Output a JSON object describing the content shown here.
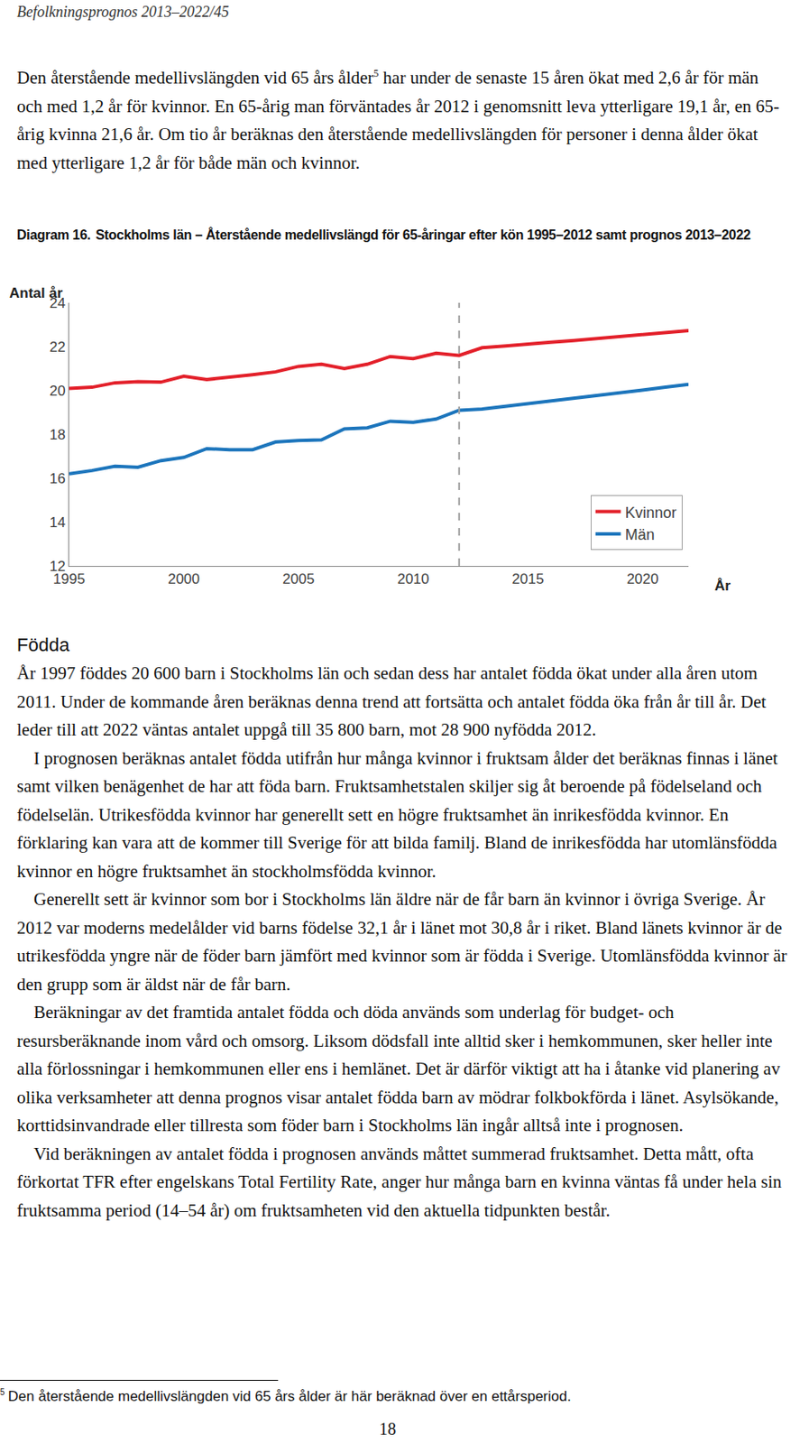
{
  "header": "Befolkningsprognos 2013–2022/45",
  "intro": {
    "text_before_ref": "Den återstående medellivslängden vid 65 års ålder",
    "footnote_ref": "5",
    "text_after_ref": " har under de senaste 15 åren ökat med 2,6 år för män och med 1,2 år för kvinnor. En 65-årig man förväntades år 2012 i genomsnitt leva ytterligare 19,1 år, en 65-årig kvinna 21,6 år. Om tio år beräknas den återstående medellivslängden för personer i denna ålder ökat med ytterligare 1,2 år för både män och kvinnor."
  },
  "chart_data": {
    "type": "line",
    "label": "Diagram 16.",
    "title": "Stockholms län – Återstående medellivslängd för 65-åringar efter kön 1995–2012 samt prognos 2013–2022",
    "y_label": "Antal år",
    "x_label": "År",
    "x": [
      1995,
      1996,
      1997,
      1998,
      1999,
      2000,
      2001,
      2002,
      2003,
      2004,
      2005,
      2006,
      2007,
      2008,
      2009,
      2010,
      2011,
      2012,
      2013,
      2014,
      2015,
      2016,
      2017,
      2018,
      2019,
      2020,
      2021,
      2022
    ],
    "series": [
      {
        "name": "Kvinnor",
        "color": "#e3202a",
        "values": [
          20.1,
          20.15,
          20.35,
          20.4,
          20.38,
          20.65,
          20.5,
          20.6,
          20.72,
          20.85,
          21.1,
          21.2,
          21.0,
          21.2,
          21.55,
          21.45,
          21.7,
          21.6,
          21.95,
          22.03,
          22.1,
          22.2,
          22.28,
          22.37,
          22.46,
          22.55,
          22.64,
          22.73
        ]
      },
      {
        "name": "Män",
        "color": "#1c75bc",
        "values": [
          16.2,
          16.35,
          16.55,
          16.5,
          16.8,
          16.95,
          17.35,
          17.3,
          17.3,
          17.65,
          17.72,
          17.75,
          18.25,
          18.3,
          18.6,
          18.55,
          18.7,
          19.1,
          19.15,
          19.27,
          19.4,
          19.52,
          19.64,
          19.77,
          19.9,
          20.02,
          20.15,
          20.28
        ]
      }
    ],
    "divider_x": 2012,
    "xlim": [
      1995,
      2022
    ],
    "ylim": [
      12,
      24
    ],
    "xticks": [
      1995,
      2000,
      2005,
      2010,
      2015,
      2020
    ],
    "yticks": [
      12,
      14,
      16,
      18,
      20,
      22,
      24
    ],
    "grid": false,
    "legend": "lower right"
  },
  "section": {
    "heading": "Födda",
    "paragraphs": [
      "År 1997 föddes 20 600 barn i Stockholms län och sedan dess har antalet födda ökat under alla åren utom 2011. Under de kommande åren beräknas denna trend att fortsätta och antalet födda öka från år till år. Det leder till att 2022 väntas antalet uppgå till 35 800 barn, mot 28 900 nyfödda 2012.",
      "I prognosen beräknas antalet födda utifrån hur många kvinnor i fruktsam ålder det beräknas finnas i länet samt vilken benägenhet de har att föda barn. Fruktsamhetstalen skiljer sig åt beroende på födelseland och födelselän. Utrikesfödda kvinnor har generellt sett en högre fruktsamhet än inrikesfödda kvinnor. En förklaring kan vara att de kommer till Sverige för att bilda familj. Bland de inrikesfödda har utomlänsfödda kvinnor en högre fruktsamhet än stockholmsfödda kvinnor.",
      "Generellt sett är kvinnor som bor i Stockholms län äldre när de får barn än kvinnor i övriga Sverige. År 2012 var moderns medelålder vid barns födelse 32,1 år i länet mot 30,8 år i riket. Bland länets kvinnor är de utrikesfödda yngre när de föder barn jämfört med kvinnor som är födda i Sverige. Utomlänsfödda kvinnor är den grupp som är äldst när de får barn.",
      "Beräkningar av det framtida antalet födda och döda används som underlag för budget- och resursberäknande inom vård och omsorg. Liksom dödsfall inte alltid sker i hemkommunen, sker heller inte alla förlossningar i hemkommunen eller ens i hemlänet. Det är därför viktigt att ha i åtanke vid planering av olika verksamheter att denna prognos visar antalet födda barn av mödrar folkbokförda i länet. Asylsökande, korttidsinvandrade eller tillresta som föder barn i Stockholms län ingår alltså inte i prognosen.",
      "Vid beräkningen av antalet födda i prognosen används måttet summerad fruktsamhet. Detta mått, ofta förkortat TFR efter engelskans Total Fertility Rate, anger hur många barn en kvinna väntas få under hela sin fruktsamma period (14–54 år) om fruktsamheten vid den aktuella tidpunkten består."
    ]
  },
  "footnote": {
    "marker": "5",
    "text": "Den återstående medellivslängden vid 65 års ålder är här beräknad över en ettårsperiod."
  },
  "page_number": "18"
}
